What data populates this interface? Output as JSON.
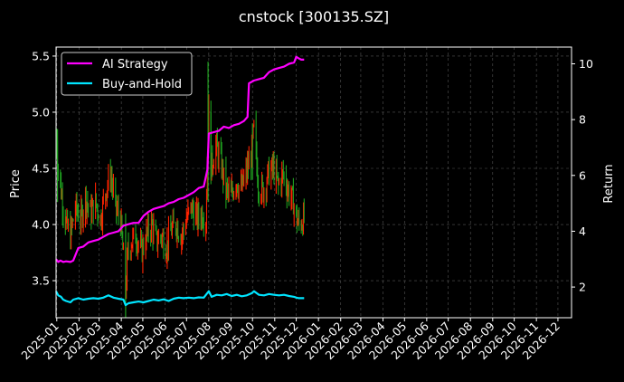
{
  "chart_data": {
    "type": "line",
    "title": "cnstock [300135.SZ]",
    "xlabel": "",
    "ylabel_left": "Price",
    "ylabel_right": "Return",
    "x_ticks": [
      "2025-01",
      "2025-02",
      "2025-03",
      "2025-04",
      "2025-05",
      "2025-06",
      "2025-07",
      "2025-08",
      "2025-09",
      "2025-10",
      "2025-11",
      "2025-12",
      "2026-01",
      "2026-02",
      "2026-03",
      "2026-04",
      "2026-05",
      "2026-06",
      "2026-07",
      "2026-08",
      "2026-09",
      "2026-10",
      "2026-11",
      "2026-12"
    ],
    "y_left_ticks": [
      3.5,
      4.0,
      4.5,
      5.0,
      5.5
    ],
    "y_right_ticks": [
      2,
      4,
      6,
      8,
      10
    ],
    "ylim_left": [
      3.17,
      5.58
    ],
    "ylim_right": [
      0.9,
      10.6
    ],
    "xlim": [
      "2024-12-31",
      "2026-12-20"
    ],
    "grid": true,
    "legend": "top-left",
    "background": "#000000",
    "colors": {
      "strategy": "#ff00ff",
      "buyhold": "#00e5ff",
      "up": "#ff2200",
      "down": "#1fa01f",
      "grid": "#555555"
    },
    "series": [
      {
        "name": "AI Strategy",
        "axis": "right",
        "color": "#ff00ff",
        "points": [
          [
            "2024-12-31",
            3.0
          ],
          [
            "2025-01-03",
            2.9
          ],
          [
            "2025-01-06",
            2.95
          ],
          [
            "2025-01-10",
            2.9
          ],
          [
            "2025-01-14",
            2.92
          ],
          [
            "2025-01-20",
            2.9
          ],
          [
            "2025-01-24",
            2.95
          ],
          [
            "2025-01-31",
            3.4
          ],
          [
            "2025-02-07",
            3.45
          ],
          [
            "2025-02-14",
            3.6
          ],
          [
            "2025-02-21",
            3.65
          ],
          [
            "2025-02-28",
            3.7
          ],
          [
            "2025-03-07",
            3.8
          ],
          [
            "2025-03-14",
            3.9
          ],
          [
            "2025-03-21",
            3.95
          ],
          [
            "2025-03-28",
            4.0
          ],
          [
            "2025-04-04",
            4.2
          ],
          [
            "2025-04-11",
            4.25
          ],
          [
            "2025-04-18",
            4.3
          ],
          [
            "2025-04-25",
            4.3
          ],
          [
            "2025-05-02",
            4.55
          ],
          [
            "2025-05-09",
            4.7
          ],
          [
            "2025-05-16",
            4.8
          ],
          [
            "2025-05-23",
            4.85
          ],
          [
            "2025-05-30",
            4.9
          ],
          [
            "2025-06-06",
            5.0
          ],
          [
            "2025-06-13",
            5.05
          ],
          [
            "2025-06-20",
            5.15
          ],
          [
            "2025-06-27",
            5.2
          ],
          [
            "2025-07-04",
            5.3
          ],
          [
            "2025-07-11",
            5.4
          ],
          [
            "2025-07-18",
            5.55
          ],
          [
            "2025-07-25",
            5.6
          ],
          [
            "2025-07-30",
            6.2
          ],
          [
            "2025-08-01",
            7.5
          ],
          [
            "2025-08-08",
            7.55
          ],
          [
            "2025-08-15",
            7.6
          ],
          [
            "2025-08-22",
            7.75
          ],
          [
            "2025-08-29",
            7.7
          ],
          [
            "2025-09-05",
            7.8
          ],
          [
            "2025-09-12",
            7.85
          ],
          [
            "2025-09-19",
            7.95
          ],
          [
            "2025-09-24",
            8.1
          ],
          [
            "2025-09-26",
            9.3
          ],
          [
            "2025-10-03",
            9.4
          ],
          [
            "2025-10-10",
            9.45
          ],
          [
            "2025-10-17",
            9.5
          ],
          [
            "2025-10-24",
            9.7
          ],
          [
            "2025-10-31",
            9.8
          ],
          [
            "2025-11-07",
            9.85
          ],
          [
            "2025-11-14",
            9.9
          ],
          [
            "2025-11-21",
            10.0
          ],
          [
            "2025-11-28",
            10.05
          ],
          [
            "2025-12-01",
            10.25
          ],
          [
            "2025-12-04",
            10.2
          ],
          [
            "2025-12-08",
            10.15
          ],
          [
            "2025-12-12",
            10.15
          ]
        ]
      },
      {
        "name": "Buy-and-Hold",
        "axis": "right",
        "color": "#00e5ff",
        "points": [
          [
            "2024-12-31",
            1.85
          ],
          [
            "2025-01-03",
            1.7
          ],
          [
            "2025-01-07",
            1.65
          ],
          [
            "2025-01-10",
            1.55
          ],
          [
            "2025-01-14",
            1.5
          ],
          [
            "2025-01-20",
            1.45
          ],
          [
            "2025-01-24",
            1.55
          ],
          [
            "2025-01-31",
            1.6
          ],
          [
            "2025-02-07",
            1.55
          ],
          [
            "2025-02-14",
            1.58
          ],
          [
            "2025-02-21",
            1.6
          ],
          [
            "2025-02-28",
            1.58
          ],
          [
            "2025-03-07",
            1.62
          ],
          [
            "2025-03-14",
            1.7
          ],
          [
            "2025-03-21",
            1.62
          ],
          [
            "2025-03-28",
            1.58
          ],
          [
            "2025-04-04",
            1.55
          ],
          [
            "2025-04-07",
            1.35
          ],
          [
            "2025-04-11",
            1.42
          ],
          [
            "2025-04-18",
            1.45
          ],
          [
            "2025-04-25",
            1.48
          ],
          [
            "2025-05-02",
            1.45
          ],
          [
            "2025-05-09",
            1.5
          ],
          [
            "2025-05-16",
            1.55
          ],
          [
            "2025-05-23",
            1.52
          ],
          [
            "2025-05-30",
            1.56
          ],
          [
            "2025-06-06",
            1.5
          ],
          [
            "2025-06-13",
            1.58
          ],
          [
            "2025-06-20",
            1.62
          ],
          [
            "2025-06-27",
            1.6
          ],
          [
            "2025-07-04",
            1.62
          ],
          [
            "2025-07-11",
            1.6
          ],
          [
            "2025-07-18",
            1.63
          ],
          [
            "2025-07-25",
            1.62
          ],
          [
            "2025-08-01",
            1.85
          ],
          [
            "2025-08-05",
            1.65
          ],
          [
            "2025-08-12",
            1.72
          ],
          [
            "2025-08-19",
            1.7
          ],
          [
            "2025-08-26",
            1.75
          ],
          [
            "2025-09-02",
            1.68
          ],
          [
            "2025-09-09",
            1.72
          ],
          [
            "2025-09-16",
            1.67
          ],
          [
            "2025-09-23",
            1.7
          ],
          [
            "2025-09-30",
            1.78
          ],
          [
            "2025-10-03",
            1.85
          ],
          [
            "2025-10-10",
            1.72
          ],
          [
            "2025-10-17",
            1.7
          ],
          [
            "2025-10-24",
            1.75
          ],
          [
            "2025-10-31",
            1.72
          ],
          [
            "2025-11-07",
            1.7
          ],
          [
            "2025-11-14",
            1.72
          ],
          [
            "2025-11-21",
            1.68
          ],
          [
            "2025-11-28",
            1.65
          ],
          [
            "2025-12-01",
            1.62
          ],
          [
            "2025-12-05",
            1.6
          ],
          [
            "2025-12-12",
            1.6
          ]
        ]
      }
    ],
    "price_daily": {
      "start": "2024-12-31",
      "end": "2025-12-12",
      "close_anchors": [
        [
          "2024-12-31",
          4.8
        ],
        [
          "2025-01-03",
          4.5
        ],
        [
          "2025-01-08",
          4.25
        ],
        [
          "2025-01-14",
          4.0
        ],
        [
          "2025-01-20",
          3.9
        ],
        [
          "2025-01-27",
          4.15
        ],
        [
          "2025-02-04",
          4.05
        ],
        [
          "2025-02-10",
          4.25
        ],
        [
          "2025-02-17",
          4.1
        ],
        [
          "2025-02-24",
          4.2
        ],
        [
          "2025-03-03",
          4.05
        ],
        [
          "2025-03-10",
          4.3
        ],
        [
          "2025-03-17",
          4.45
        ],
        [
          "2025-03-24",
          4.15
        ],
        [
          "2025-03-31",
          4.05
        ],
        [
          "2025-04-07",
          3.4
        ],
        [
          "2025-04-10",
          3.75
        ],
        [
          "2025-04-15",
          3.85
        ],
        [
          "2025-04-22",
          3.9
        ],
        [
          "2025-04-29",
          3.75
        ],
        [
          "2025-05-06",
          3.9
        ],
        [
          "2025-05-13",
          4.0
        ],
        [
          "2025-05-20",
          3.85
        ],
        [
          "2025-05-27",
          3.9
        ],
        [
          "2025-06-03",
          3.8
        ],
        [
          "2025-06-10",
          3.95
        ],
        [
          "2025-06-17",
          4.0
        ],
        [
          "2025-06-24",
          3.9
        ],
        [
          "2025-07-01",
          4.05
        ],
        [
          "2025-07-08",
          4.15
        ],
        [
          "2025-07-15",
          4.05
        ],
        [
          "2025-07-22",
          4.1
        ],
        [
          "2025-07-28",
          4.05
        ],
        [
          "2025-08-01",
          5.0
        ],
        [
          "2025-08-04",
          4.5
        ],
        [
          "2025-08-11",
          4.7
        ],
        [
          "2025-08-18",
          4.55
        ],
        [
          "2025-08-25",
          4.3
        ],
        [
          "2025-09-01",
          4.25
        ],
        [
          "2025-09-08",
          4.4
        ],
        [
          "2025-09-15",
          4.3
        ],
        [
          "2025-09-22",
          4.45
        ],
        [
          "2025-09-29",
          4.6
        ],
        [
          "2025-10-03",
          4.85
        ],
        [
          "2025-10-09",
          4.35
        ],
        [
          "2025-10-16",
          4.3
        ],
        [
          "2025-10-23",
          4.45
        ],
        [
          "2025-10-30",
          4.5
        ],
        [
          "2025-11-06",
          4.35
        ],
        [
          "2025-11-13",
          4.45
        ],
        [
          "2025-11-20",
          4.3
        ],
        [
          "2025-11-27",
          4.2
        ],
        [
          "2025-12-01",
          4.05
        ],
        [
          "2025-12-05",
          4.0
        ],
        [
          "2025-12-12",
          4.05
        ]
      ],
      "spikes": [
        [
          "2025-07-31",
          5.45,
          4.2
        ],
        [
          "2025-10-01",
          4.9,
          4.4
        ],
        [
          "2025-04-07",
          4.1,
          3.17
        ],
        [
          "2025-01-02",
          4.85,
          4.2
        ],
        [
          "2025-08-04",
          5.0,
          4.4
        ]
      ]
    }
  }
}
